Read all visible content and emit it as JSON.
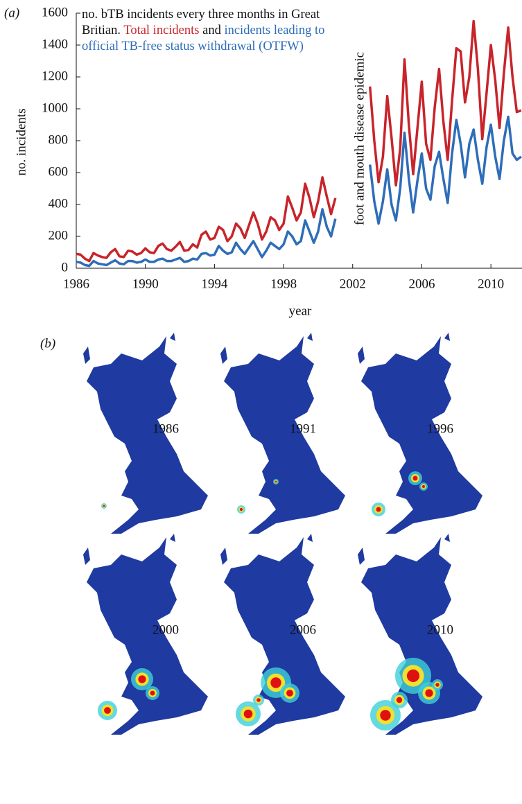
{
  "chart_data": {
    "type": "line",
    "panel_label": "(a)",
    "title": "no. bTB incidents every three months in Great Britian.",
    "joiner": "and",
    "annotation": "foot and mouth disease epidemic",
    "xlabel": "year",
    "ylabel": "no. incidents",
    "x": [
      1986,
      1986.25,
      1986.5,
      1986.75,
      1987,
      1987.25,
      1987.5,
      1987.75,
      1988,
      1988.25,
      1988.5,
      1988.75,
      1989,
      1989.25,
      1989.5,
      1989.75,
      1990,
      1990.25,
      1990.5,
      1990.75,
      1991,
      1991.25,
      1991.5,
      1991.75,
      1992,
      1992.25,
      1992.5,
      1992.75,
      1993,
      1993.25,
      1993.5,
      1993.75,
      1994,
      1994.25,
      1994.5,
      1994.75,
      1995,
      1995.25,
      1995.5,
      1995.75,
      1996,
      1996.25,
      1996.5,
      1996.75,
      1997,
      1997.25,
      1997.5,
      1997.75,
      1998,
      1998.25,
      1998.5,
      1998.75,
      1999,
      1999.25,
      1999.5,
      1999.75,
      2000,
      2000.25,
      2000.5,
      2000.75,
      2001,
      2002,
      2003,
      2003.25,
      2003.5,
      2003.75,
      2004,
      2004.25,
      2004.5,
      2004.75,
      2005,
      2005.25,
      2005.5,
      2005.75,
      2006,
      2006.25,
      2006.5,
      2006.75,
      2007,
      2007.25,
      2007.5,
      2007.75,
      2008,
      2008.25,
      2008.5,
      2008.75,
      2009,
      2009.25,
      2009.5,
      2009.75,
      2010,
      2010.25,
      2010.5,
      2010.75,
      2011,
      2011.25,
      2011.5,
      2011.75
    ],
    "series": [
      {
        "name": "Total incidents",
        "color": "#c8242b",
        "values": [
          90,
          85,
          60,
          45,
          95,
          80,
          70,
          65,
          100,
          120,
          75,
          70,
          110,
          105,
          85,
          95,
          125,
          100,
          95,
          140,
          155,
          120,
          110,
          135,
          165,
          110,
          115,
          150,
          130,
          210,
          230,
          180,
          190,
          260,
          240,
          170,
          200,
          280,
          250,
          190,
          270,
          350,
          280,
          180,
          230,
          320,
          300,
          240,
          280,
          450,
          380,
          300,
          350,
          530,
          440,
          320,
          420,
          570,
          450,
          340,
          440,
          null,
          1140,
          800,
          540,
          700,
          1080,
          820,
          520,
          750,
          1310,
          900,
          590,
          880,
          1170,
          780,
          680,
          1010,
          1250,
          920,
          680,
          1050,
          1380,
          1360,
          1040,
          1200,
          1550,
          1250,
          810,
          1100,
          1400,
          1180,
          880,
          1220,
          1510,
          1200,
          980,
          990
        ]
      },
      {
        "name": "incidents leading to official TB-free status withdrawal (OTFW)",
        "color": "#2e6db8",
        "values": [
          40,
          35,
          20,
          15,
          45,
          30,
          25,
          20,
          35,
          50,
          30,
          25,
          45,
          45,
          35,
          40,
          55,
          40,
          40,
          55,
          60,
          45,
          45,
          55,
          65,
          40,
          45,
          60,
          55,
          90,
          95,
          80,
          85,
          140,
          110,
          90,
          100,
          160,
          120,
          90,
          130,
          170,
          120,
          70,
          110,
          160,
          140,
          120,
          150,
          230,
          200,
          150,
          170,
          300,
          230,
          160,
          230,
          370,
          260,
          200,
          310,
          null,
          650,
          420,
          280,
          420,
          620,
          400,
          300,
          500,
          850,
          560,
          350,
          550,
          720,
          500,
          430,
          640,
          730,
          560,
          410,
          720,
          930,
          780,
          570,
          780,
          870,
          680,
          530,
          760,
          900,
          700,
          560,
          800,
          950,
          720,
          680,
          700
        ]
      }
    ],
    "xlim": [
      1986,
      2011.8
    ],
    "ylim": [
      0,
      1600
    ],
    "xticks": [
      1986,
      1990,
      1994,
      1998,
      2002,
      2006,
      2010
    ],
    "yticks": [
      0,
      200,
      400,
      600,
      800,
      1000,
      1200,
      1400,
      1600
    ]
  },
  "panel_b": {
    "label": "(b)",
    "maps": [
      "1986",
      "1991",
      "1996",
      "2000",
      "2006",
      "2010"
    ]
  }
}
